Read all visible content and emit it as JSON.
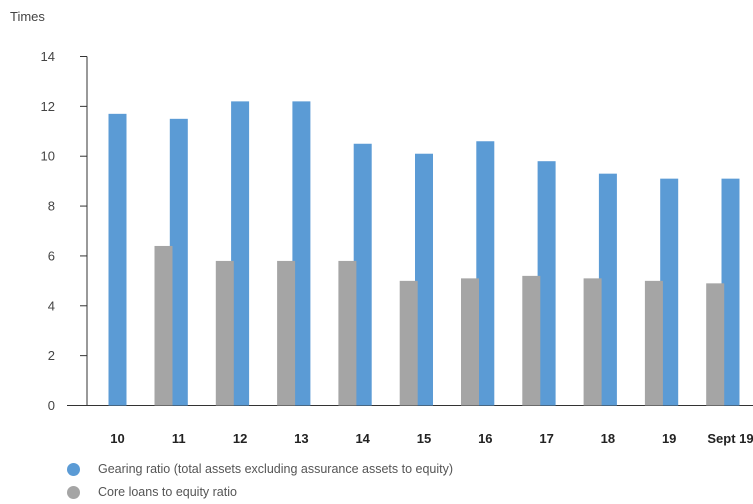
{
  "chart_data": {
    "type": "bar",
    "ylabel": "Times",
    "ylim": [
      0,
      14
    ],
    "yticks": [
      0,
      2,
      4,
      6,
      8,
      10,
      12,
      14
    ],
    "categories": [
      "10",
      "11",
      "12",
      "13",
      "14",
      "15",
      "16",
      "17",
      "18",
      "19",
      "Sept 19"
    ],
    "series": [
      {
        "name": "Gearing ratio (total assets excluding assurance assets to equity)",
        "color": "#5b9bd5",
        "values": [
          11.7,
          11.5,
          12.2,
          12.2,
          10.5,
          10.1,
          10.6,
          9.8,
          9.3,
          9.1,
          9.1
        ]
      },
      {
        "name": "Core loans to equity ratio",
        "color": "#a5a5a5",
        "values": [
          6.4,
          5.8,
          5.8,
          5.8,
          5.0,
          5.1,
          5.2,
          5.1,
          5.0,
          4.9,
          4.8
        ]
      }
    ],
    "grid": false,
    "legend_position": "bottom-left"
  }
}
